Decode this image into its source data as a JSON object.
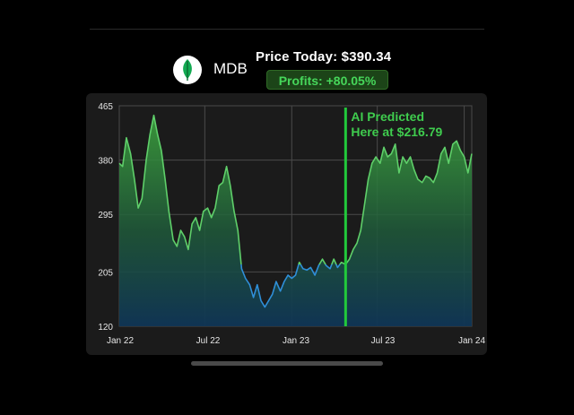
{
  "header": {
    "ticker": "MDB",
    "price_today": "Price Today: $390.34",
    "profits": "Profits: +80.05%",
    "logo_icon": "leaf-icon"
  },
  "colors": {
    "background": "#000000",
    "card": "#1b1b1b",
    "line_above": "#5fcf6a",
    "line_below": "#2f8fd8",
    "prediction_line": "#22c93b",
    "profit_text": "#46d65a",
    "profit_bg": "#1c4418"
  },
  "chart_data": {
    "type": "area",
    "title": "",
    "xlabel": "",
    "ylabel": "",
    "x_ticks": [
      "Jan 22",
      "Jul 22",
      "Jan 23",
      "Jul 23",
      "Jan 24"
    ],
    "y_ticks": [
      "465",
      "380",
      "295",
      "205",
      "120"
    ],
    "ylim": [
      120,
      465
    ],
    "grid": true,
    "annotation": {
      "line1": "AI Predicted",
      "line2": "Here at $216.79",
      "date": "2023-04-25",
      "value": 216.79
    },
    "series": [
      {
        "color_rule": "green above the predicted price, blue below",
        "points": [
          [
            "2022-01-01",
            375
          ],
          [
            "2022-01-08",
            370
          ],
          [
            "2022-01-16",
            415
          ],
          [
            "2022-01-25",
            390
          ],
          [
            "2022-02-02",
            350
          ],
          [
            "2022-02-10",
            305
          ],
          [
            "2022-02-18",
            320
          ],
          [
            "2022-02-27",
            380
          ],
          [
            "2022-03-07",
            420
          ],
          [
            "2022-03-15",
            450
          ],
          [
            "2022-03-23",
            420
          ],
          [
            "2022-03-31",
            395
          ],
          [
            "2022-04-08",
            350
          ],
          [
            "2022-04-16",
            300
          ],
          [
            "2022-04-25",
            255
          ],
          [
            "2022-05-03",
            245
          ],
          [
            "2022-05-11",
            270
          ],
          [
            "2022-05-19",
            260
          ],
          [
            "2022-05-27",
            240
          ],
          [
            "2022-06-04",
            280
          ],
          [
            "2022-06-12",
            290
          ],
          [
            "2022-06-20",
            270
          ],
          [
            "2022-06-28",
            300
          ],
          [
            "2022-07-07",
            305
          ],
          [
            "2022-07-15",
            290
          ],
          [
            "2022-07-23",
            305
          ],
          [
            "2022-07-31",
            340
          ],
          [
            "2022-08-08",
            345
          ],
          [
            "2022-08-16",
            370
          ],
          [
            "2022-08-24",
            340
          ],
          [
            "2022-09-01",
            300
          ],
          [
            "2022-09-09",
            270
          ],
          [
            "2022-09-17",
            210
          ],
          [
            "2022-09-25",
            195
          ],
          [
            "2022-10-04",
            185
          ],
          [
            "2022-10-12",
            165
          ],
          [
            "2022-10-20",
            185
          ],
          [
            "2022-10-28",
            160
          ],
          [
            "2022-11-05",
            150
          ],
          [
            "2022-11-13",
            160
          ],
          [
            "2022-11-21",
            170
          ],
          [
            "2022-11-29",
            190
          ],
          [
            "2022-12-08",
            175
          ],
          [
            "2022-12-16",
            190
          ],
          [
            "2022-12-24",
            200
          ],
          [
            "2023-01-01",
            195
          ],
          [
            "2023-01-09",
            200
          ],
          [
            "2023-01-17",
            220
          ],
          [
            "2023-01-25",
            210
          ],
          [
            "2023-02-02",
            208
          ],
          [
            "2023-02-10",
            212
          ],
          [
            "2023-02-19",
            200
          ],
          [
            "2023-02-27",
            215
          ],
          [
            "2023-03-07",
            225
          ],
          [
            "2023-03-15",
            215
          ],
          [
            "2023-03-23",
            210
          ],
          [
            "2023-03-31",
            225
          ],
          [
            "2023-04-08",
            212
          ],
          [
            "2023-04-16",
            220
          ],
          [
            "2023-04-25",
            216.79
          ],
          [
            "2023-05-03",
            225
          ],
          [
            "2023-05-11",
            240
          ],
          [
            "2023-05-19",
            250
          ],
          [
            "2023-05-27",
            270
          ],
          [
            "2023-06-04",
            310
          ],
          [
            "2023-06-12",
            350
          ],
          [
            "2023-06-20",
            375
          ],
          [
            "2023-06-28",
            385
          ],
          [
            "2023-07-07",
            375
          ],
          [
            "2023-07-15",
            400
          ],
          [
            "2023-07-23",
            385
          ],
          [
            "2023-07-31",
            390
          ],
          [
            "2023-08-08",
            405
          ],
          [
            "2023-08-16",
            360
          ],
          [
            "2023-08-24",
            385
          ],
          [
            "2023-09-01",
            375
          ],
          [
            "2023-09-09",
            385
          ],
          [
            "2023-09-17",
            365
          ],
          [
            "2023-09-25",
            350
          ],
          [
            "2023-10-04",
            345
          ],
          [
            "2023-10-12",
            355
          ],
          [
            "2023-10-20",
            352
          ],
          [
            "2023-10-28",
            345
          ],
          [
            "2023-11-05",
            360
          ],
          [
            "2023-11-13",
            390
          ],
          [
            "2023-11-21",
            400
          ],
          [
            "2023-11-29",
            375
          ],
          [
            "2023-12-08",
            405
          ],
          [
            "2023-12-16",
            410
          ],
          [
            "2023-12-24",
            395
          ],
          [
            "2024-01-01",
            385
          ],
          [
            "2024-01-09",
            360
          ],
          [
            "2024-01-17",
            390
          ]
        ]
      }
    ]
  }
}
